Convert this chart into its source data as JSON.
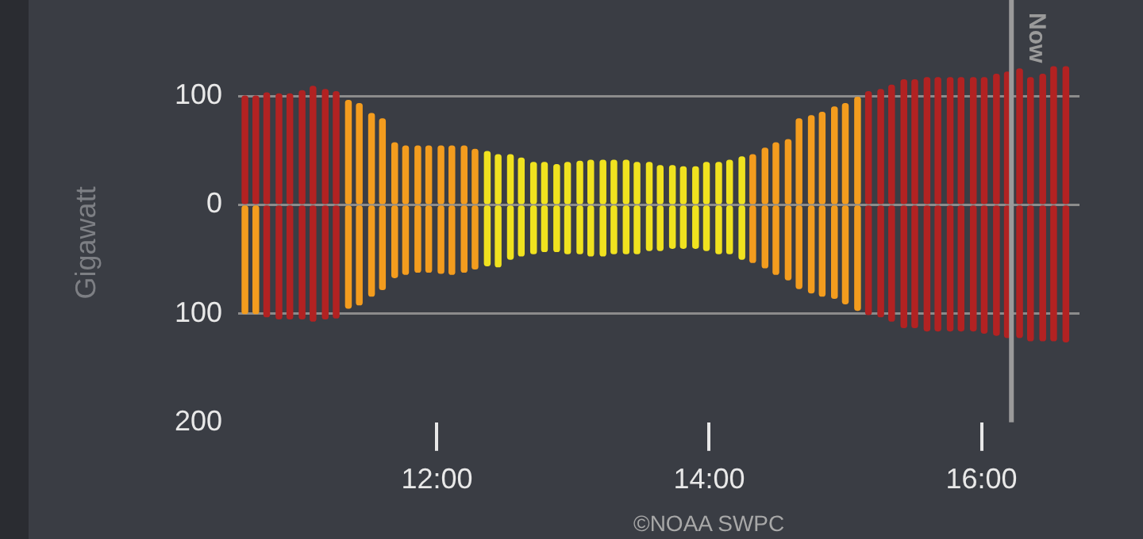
{
  "chart_data": {
    "type": "bar",
    "stacked": true,
    "ylabel": "Gigawatt",
    "x": [
      10.59,
      10.67,
      10.75,
      10.84,
      10.92,
      11.01,
      11.09,
      11.18,
      11.26,
      11.35,
      11.43,
      11.52,
      11.6,
      11.69,
      11.77,
      11.86,
      11.94,
      12.03,
      12.11,
      12.2,
      12.28,
      12.37,
      12.45,
      12.54,
      12.62,
      12.71,
      12.79,
      12.88,
      12.96,
      13.05,
      13.13,
      13.22,
      13.3,
      13.39,
      13.47,
      13.56,
      13.64,
      13.73,
      13.81,
      13.9,
      13.98,
      14.07,
      14.15,
      14.24,
      14.32,
      14.41,
      14.49,
      14.58,
      14.66,
      14.75,
      14.83,
      14.92,
      15.0,
      15.09,
      15.17,
      15.26,
      15.34,
      15.43,
      15.51,
      15.6,
      15.68,
      15.77,
      15.85,
      15.94,
      16.02,
      16.11,
      16.19,
      16.28,
      16.36,
      16.45,
      16.53,
      16.62
    ],
    "series": [
      {
        "values": [
          100,
          100,
          103,
          102,
          102,
          105,
          109,
          106,
          104,
          96,
          93,
          84,
          79,
          57,
          54,
          54,
          54,
          54,
          54,
          54,
          51,
          49,
          46,
          46,
          43,
          39,
          39,
          37,
          39,
          40,
          41,
          41,
          41,
          41,
          39,
          39,
          36,
          36,
          35,
          35,
          39,
          39,
          41,
          44,
          46,
          52,
          57,
          60,
          79,
          82,
          85,
          90,
          93,
          99,
          104,
          106,
          110,
          115,
          115,
          117,
          117,
          117,
          117,
          117,
          117,
          120,
          122,
          125,
          117,
          120,
          127,
          127
        ],
        "colors": [
          "#b22222",
          "#b22222",
          "#b22222",
          "#b22222",
          "#b22222",
          "#b22222",
          "#b22222",
          "#b22222",
          "#b22222",
          "#f39c1e",
          "#f39c1e",
          "#f39c1e",
          "#f39c1e",
          "#f39c1e",
          "#f39c1e",
          "#f39c1e",
          "#f39c1e",
          "#f39c1e",
          "#f39c1e",
          "#f39c1e",
          "#f39c1e",
          "#f0e21f",
          "#f0e21f",
          "#f0e21f",
          "#f0e21f",
          "#f0e21f",
          "#f0e21f",
          "#f0e21f",
          "#f0e21f",
          "#f0e21f",
          "#f0e21f",
          "#f0e21f",
          "#f0e21f",
          "#f0e21f",
          "#f0e21f",
          "#f0e21f",
          "#f0e21f",
          "#f0e21f",
          "#f0e21f",
          "#f0e21f",
          "#f0e21f",
          "#f0e21f",
          "#f0e21f",
          "#f0e21f",
          "#f39c1e",
          "#f39c1e",
          "#f39c1e",
          "#f39c1e",
          "#f39c1e",
          "#f39c1e",
          "#f39c1e",
          "#f39c1e",
          "#f39c1e",
          "#f39c1e",
          "#b22222",
          "#b22222",
          "#b22222",
          "#b22222",
          "#b22222",
          "#b22222",
          "#b22222",
          "#b22222",
          "#b22222",
          "#b22222",
          "#b22222",
          "#b22222",
          "#b22222",
          "#b22222",
          "#b22222",
          "#b22222",
          "#b22222",
          "#b22222"
        ]
      },
      {
        "values": [
          -100,
          -100,
          -103,
          -105,
          -105,
          -105,
          -107,
          -105,
          -104,
          -95,
          -92,
          -84,
          -78,
          -67,
          -64,
          -62,
          -62,
          -63,
          -64,
          -62,
          -59,
          -56,
          -57,
          -50,
          -47,
          -45,
          -43,
          -43,
          -45,
          -45,
          -47,
          -47,
          -45,
          -45,
          -45,
          -42,
          -42,
          -40,
          -40,
          -40,
          -42,
          -45,
          -45,
          -50,
          -53,
          -58,
          -64,
          -69,
          -77,
          -81,
          -84,
          -86,
          -91,
          -97,
          -101,
          -103,
          -107,
          -113,
          -113,
          -116,
          -116,
          -116,
          -116,
          -116,
          -118,
          -120,
          -122,
          -122,
          -125,
          -125,
          -125,
          -126
        ],
        "colors": [
          "#f39c1e",
          "#f39c1e",
          "#b22222",
          "#b22222",
          "#b22222",
          "#b22222",
          "#b22222",
          "#b22222",
          "#b22222",
          "#f39c1e",
          "#f39c1e",
          "#f39c1e",
          "#f39c1e",
          "#f39c1e",
          "#f39c1e",
          "#f39c1e",
          "#f39c1e",
          "#f39c1e",
          "#f39c1e",
          "#f39c1e",
          "#f39c1e",
          "#f0e21f",
          "#f0e21f",
          "#f0e21f",
          "#f0e21f",
          "#f0e21f",
          "#f0e21f",
          "#f0e21f",
          "#f0e21f",
          "#f0e21f",
          "#f0e21f",
          "#f0e21f",
          "#f0e21f",
          "#f0e21f",
          "#f0e21f",
          "#f0e21f",
          "#f0e21f",
          "#f0e21f",
          "#f0e21f",
          "#f0e21f",
          "#f0e21f",
          "#f0e21f",
          "#f0e21f",
          "#f0e21f",
          "#f39c1e",
          "#f39c1e",
          "#f39c1e",
          "#f39c1e",
          "#f39c1e",
          "#f39c1e",
          "#f39c1e",
          "#f39c1e",
          "#f39c1e",
          "#f39c1e",
          "#b22222",
          "#b22222",
          "#b22222",
          "#b22222",
          "#b22222",
          "#b22222",
          "#b22222",
          "#b22222",
          "#b22222",
          "#b22222",
          "#b22222",
          "#b22222",
          "#b22222",
          "#b22222",
          "#b22222",
          "#b22222",
          "#b22222",
          "#b22222"
        ]
      }
    ],
    "xlim": [
      10.54,
      16.72
    ],
    "xticks": [
      {
        "value": 12,
        "label": "12:00"
      },
      {
        "value": 14,
        "label": "14:00"
      },
      {
        "value": 16,
        "label": "16:00"
      }
    ],
    "ylim": [
      -200,
      130
    ],
    "yticks": [
      {
        "value": -200,
        "label": "200"
      },
      {
        "value": -100,
        "label": "100"
      },
      0,
      100
    ],
    "grid": "y",
    "legend": false,
    "ref_lines": [
      {
        "axis": "x",
        "value": 16.22,
        "label": "Now",
        "color": "#9a9a9a"
      }
    ],
    "annotations": [
      "©NOAA SWPC"
    ]
  }
}
